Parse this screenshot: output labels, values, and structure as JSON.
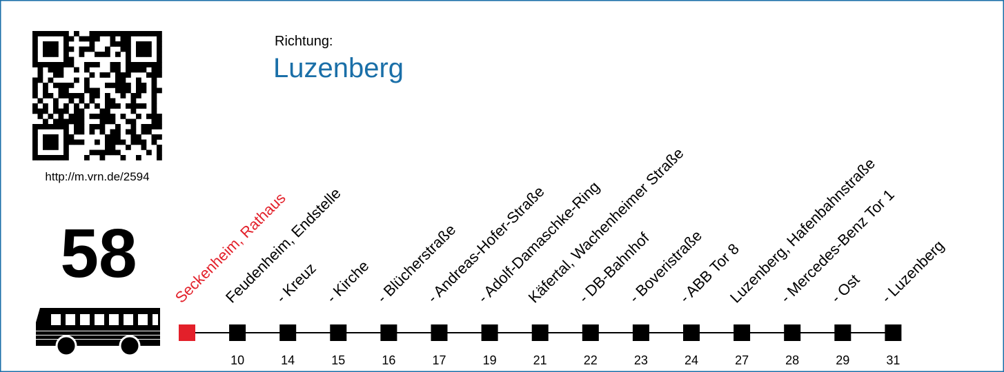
{
  "qr_url": "http://m.vrn.de/2594",
  "line": "58",
  "direction_label": "Richtung:",
  "direction": "Luzenberg",
  "stops": [
    {
      "name": "Seckenheim, Rathaus"
    },
    {
      "name": "Feudenheim, Endstelle",
      "time": 10
    },
    {
      "name": "- Kreuz",
      "time": 14
    },
    {
      "name": "- Kirche",
      "time": 15
    },
    {
      "name": "- Blücherstraße",
      "time": 16
    },
    {
      "name": "- Andreas-Hofer-Straße",
      "time": 17
    },
    {
      "name": "- Adolf-Damaschke-Ring",
      "time": 19
    },
    {
      "name": "Käfertal, Wachenheimer Straße",
      "time": 21
    },
    {
      "name": "- DB-Bahnhof",
      "time": 22
    },
    {
      "name": "- Boveristraße",
      "time": 23
    },
    {
      "name": "- ABB Tor 8",
      "time": 24
    },
    {
      "name": "Luzenberg, Hafenbahnstraße",
      "time": 27
    },
    {
      "name": "- Mercedes-Benz Tor 1",
      "time": 28
    },
    {
      "name": "- Ost",
      "time": 29
    },
    {
      "name": "- Luzenberg",
      "time": 31
    }
  ]
}
